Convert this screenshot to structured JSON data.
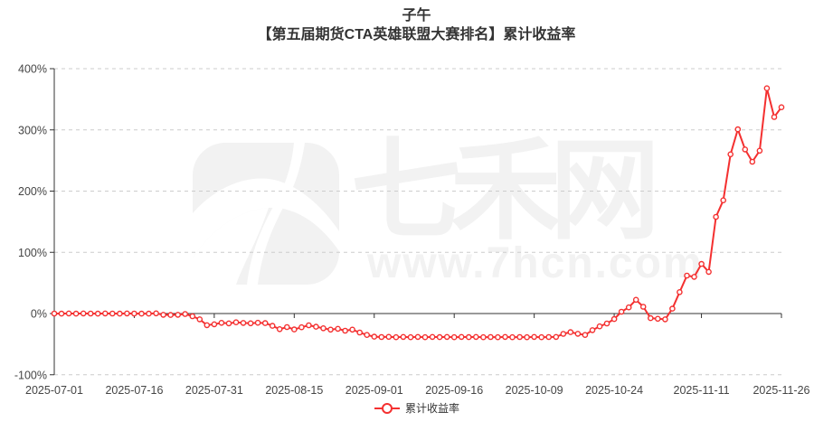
{
  "page": {
    "background": "#ffffff"
  },
  "header": {
    "title": "子午",
    "subtitle": "【第五届期货CTA英雄联盟大赛排名】累计收益率"
  },
  "watermark": {
    "brand": "七禾网",
    "url": "www.7hcn.com",
    "logo": "7hcn-seven-logo",
    "color": "#f2f2f2"
  },
  "legend": {
    "items": [
      {
        "label": "累计收益率",
        "color": "#f43030",
        "marker": "hollow-circle"
      }
    ]
  },
  "chart_data": {
    "type": "line",
    "title": "子午",
    "subtitle": "【第五届期货CTA英雄联盟大赛排名】累计收益率",
    "x": [
      "2025-07-01",
      "2025-07-02",
      "2025-07-03",
      "2025-07-04",
      "2025-07-07",
      "2025-07-08",
      "2025-07-09",
      "2025-07-10",
      "2025-07-11",
      "2025-07-14",
      "2025-07-15",
      "2025-07-16",
      "2025-07-17",
      "2025-07-18",
      "2025-07-21",
      "2025-07-22",
      "2025-07-23",
      "2025-07-24",
      "2025-07-25",
      "2025-07-28",
      "2025-07-29",
      "2025-07-30",
      "2025-07-31",
      "2025-08-01",
      "2025-08-04",
      "2025-08-05",
      "2025-08-06",
      "2025-08-07",
      "2025-08-08",
      "2025-08-11",
      "2025-08-12",
      "2025-08-13",
      "2025-08-14",
      "2025-08-15",
      "2025-08-18",
      "2025-08-19",
      "2025-08-20",
      "2025-08-21",
      "2025-08-22",
      "2025-08-25",
      "2025-08-26",
      "2025-08-27",
      "2025-08-28",
      "2025-08-29",
      "2025-09-01",
      "2025-09-02",
      "2025-09-03",
      "2025-09-04",
      "2025-09-05",
      "2025-09-08",
      "2025-09-09",
      "2025-09-10",
      "2025-09-11",
      "2025-09-12",
      "2025-09-15",
      "2025-09-16",
      "2025-09-17",
      "2025-09-18",
      "2025-09-19",
      "2025-09-22",
      "2025-09-23",
      "2025-09-24",
      "2025-09-25",
      "2025-09-26",
      "2025-09-29",
      "2025-09-30",
      "2025-10-09",
      "2025-10-10",
      "2025-10-13",
      "2025-10-14",
      "2025-10-15",
      "2025-10-16",
      "2025-10-17",
      "2025-10-20",
      "2025-10-21",
      "2025-10-22",
      "2025-10-23",
      "2025-10-24",
      "2025-10-27",
      "2025-10-28",
      "2025-10-29",
      "2025-10-30",
      "2025-10-31",
      "2025-11-03",
      "2025-11-04",
      "2025-11-05",
      "2025-11-06",
      "2025-11-07",
      "2025-11-10",
      "2025-11-11",
      "2025-11-12",
      "2025-11-13",
      "2025-11-14",
      "2025-11-17",
      "2025-11-18",
      "2025-11-19",
      "2025-11-20",
      "2025-11-21",
      "2025-11-24",
      "2025-11-25",
      "2025-11-26"
    ],
    "series": [
      {
        "name": "累计收益率",
        "color": "#f43030",
        "marker": "hollow-circle",
        "values": [
          0,
          -0.2,
          0.1,
          -0.1,
          0.2,
          0,
          -0.2,
          0.1,
          0,
          -0.1,
          0.1,
          0,
          -0.2,
          -0.1,
          0.3,
          -2,
          -2.3,
          -2.1,
          -0.8,
          -4.5,
          -9.5,
          -19,
          -17.5,
          -15.2,
          -16.1,
          -14.3,
          -15.4,
          -15.9,
          -15.1,
          -15.6,
          -20.1,
          -25.6,
          -22.1,
          -26,
          -22.4,
          -19.2,
          -21.6,
          -24.1,
          -26.2,
          -25,
          -28.1,
          -26.3,
          -31,
          -35,
          -37.8,
          -38.4,
          -38.1,
          -38.6,
          -38.2,
          -38.7,
          -38.3,
          -38.6,
          -38.2,
          -38.5,
          -38.3,
          -38.6,
          -38.2,
          -38.5,
          -38.3,
          -38.6,
          -38.4,
          -38.7,
          -38.3,
          -38.6,
          -38.4,
          -38.6,
          -38.3,
          -38.6,
          -38.4,
          -38.2,
          -33.2,
          -30.4,
          -33.1,
          -35,
          -27.2,
          -21,
          -16.3,
          -9,
          3,
          10,
          22.5,
          11,
          -7.5,
          -8.6,
          -9.4,
          8,
          35,
          62,
          60,
          81,
          68,
          158,
          185,
          260,
          301,
          268,
          248,
          266,
          368,
          321,
          337
        ]
      }
    ],
    "x_tick_labels": [
      "2025-07-01",
      "2025-07-16",
      "2025-07-31",
      "2025-08-15",
      "2025-09-01",
      "2025-09-16",
      "2025-10-09",
      "2025-10-24",
      "2025-11-11",
      "2025-11-26"
    ],
    "y_tick_labels": [
      "400%",
      "300%",
      "200%",
      "100%",
      "0%",
      "-100%"
    ],
    "y_tick_values": [
      400,
      300,
      200,
      100,
      0,
      -100
    ],
    "ylim": [
      -100,
      400
    ],
    "y_unit": "%",
    "xlabel": "",
    "ylabel": "",
    "grid": "horizontal-dashed",
    "axis_on_zero": true,
    "legend_position": "bottom-center",
    "axis_color": "#333333",
    "grid_color": "#cccccc",
    "label_color": "#454545"
  }
}
